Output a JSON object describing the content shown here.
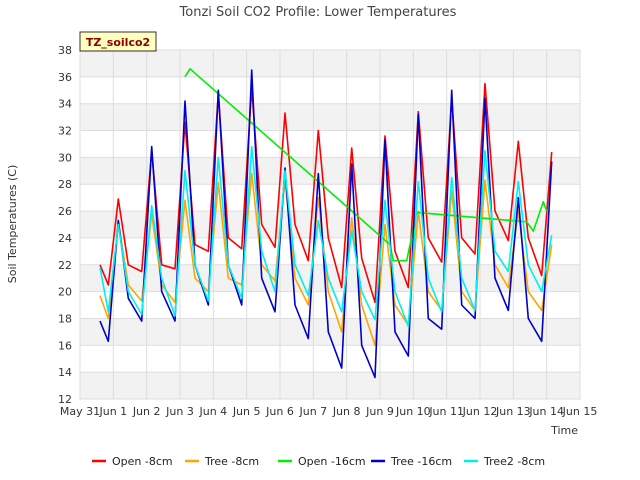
{
  "chart_data": {
    "type": "line",
    "title": "Tonzi Soil CO2 Profile: Lower Temperatures",
    "xlabel": "Time",
    "ylabel": "Soil Temperatures (C)",
    "badge": "TZ_soilco2",
    "ylim": [
      12,
      38
    ],
    "yticks": [
      12,
      14,
      16,
      18,
      20,
      22,
      24,
      26,
      28,
      30,
      32,
      34,
      36,
      38
    ],
    "xlim": [
      0,
      15
    ],
    "xticks": [
      {
        "v": 0,
        "label": "May 31"
      },
      {
        "v": 1,
        "label": "Jun 1"
      },
      {
        "v": 2,
        "label": "Jun 2"
      },
      {
        "v": 3,
        "label": "Jun 3"
      },
      {
        "v": 4,
        "label": "Jun 4"
      },
      {
        "v": 5,
        "label": "Jun 5"
      },
      {
        "v": 6,
        "label": "Jun 6"
      },
      {
        "v": 7,
        "label": "Jun 7"
      },
      {
        "v": 8,
        "label": "Jun 8"
      },
      {
        "v": 9,
        "label": "Jun 9"
      },
      {
        "v": 10,
        "label": "Jun 10"
      },
      {
        "v": 11,
        "label": "Jun 11"
      },
      {
        "v": 12,
        "label": "Jun 12"
      },
      {
        "v": 13,
        "label": "Jun 13"
      },
      {
        "v": 14,
        "label": "Jun 14"
      },
      {
        "v": 15,
        "label": "Jun 15"
      }
    ],
    "grid": true,
    "legend_position": "bottom",
    "series": [
      {
        "name": "Open -8cm",
        "color": "#ff0000",
        "x": [
          0.6,
          0.85,
          1.15,
          1.45,
          1.85,
          2.15,
          2.45,
          2.85,
          3.15,
          3.45,
          3.85,
          4.15,
          4.45,
          4.85,
          5.15,
          5.45,
          5.85,
          6.15,
          6.45,
          6.85,
          7.15,
          7.45,
          7.85,
          8.15,
          8.45,
          8.85,
          9.15,
          9.45,
          9.85,
          10.15,
          10.45,
          10.85,
          11.15,
          11.45,
          11.85,
          12.15,
          12.45,
          12.85,
          13.15,
          13.45,
          13.85,
          14.15
        ],
        "y": [
          22.0,
          20.5,
          26.9,
          22.0,
          21.5,
          30.5,
          22.0,
          21.7,
          32.6,
          23.5,
          23.0,
          34.8,
          24.0,
          23.2,
          35.2,
          25.0,
          23.3,
          33.3,
          25.0,
          22.3,
          32.0,
          24.0,
          20.3,
          30.7,
          22.5,
          19.2,
          31.6,
          23.0,
          20.3,
          33.4,
          24.0,
          22.2,
          34.4,
          24.0,
          22.8,
          35.5,
          26.0,
          23.8,
          31.2,
          24.0,
          21.2,
          30.4
        ]
      },
      {
        "name": "Tree -8cm",
        "color": "#ffa500",
        "x": [
          0.6,
          0.85,
          1.15,
          1.45,
          1.85,
          2.15,
          2.45,
          2.85,
          3.15,
          3.45,
          3.85,
          4.15,
          4.45,
          4.85,
          5.15,
          5.45,
          5.85,
          6.15,
          6.45,
          6.85,
          7.15,
          7.45,
          7.85,
          8.15,
          8.45,
          8.85,
          9.15,
          9.45,
          9.85,
          10.15,
          10.45,
          10.85,
          11.15,
          11.45,
          11.85,
          12.15,
          12.45,
          12.85,
          13.15,
          13.45,
          13.85,
          14.15
        ],
        "y": [
          19.7,
          18.0,
          25.2,
          20.5,
          19.3,
          25.8,
          20.5,
          19.2,
          26.8,
          21.0,
          20.0,
          28.1,
          21.0,
          20.5,
          28.8,
          22.0,
          20.8,
          28.3,
          21.0,
          19.0,
          27.0,
          20.0,
          17.0,
          25.5,
          19.0,
          16.0,
          25.0,
          19.0,
          17.5,
          26.0,
          20.0,
          18.6,
          27.5,
          20.0,
          18.6,
          28.3,
          22.0,
          20.3,
          26.0,
          20.0,
          18.6,
          23.5
        ]
      },
      {
        "name": "Open -16cm",
        "color": "#00ee00",
        "x": [
          3.15,
          3.3,
          9.3,
          9.4,
          9.8,
          10.1,
          13.4,
          13.6,
          13.9,
          14.0
        ],
        "y": [
          36.0,
          36.6,
          23.5,
          22.3,
          22.3,
          25.9,
          25.2,
          24.5,
          26.7,
          26.0
        ]
      },
      {
        "name": "Tree -16cm",
        "color": "#0000cc",
        "x": [
          0.6,
          0.85,
          1.15,
          1.45,
          1.85,
          2.15,
          2.45,
          2.85,
          3.15,
          3.45,
          3.85,
          4.15,
          4.45,
          4.85,
          5.15,
          5.45,
          5.85,
          6.15,
          6.45,
          6.85,
          7.15,
          7.45,
          7.85,
          8.15,
          8.45,
          8.85,
          9.15,
          9.45,
          9.85,
          10.15,
          10.45,
          10.85,
          11.15,
          11.45,
          11.85,
          12.15,
          12.45,
          12.85,
          13.15,
          13.45,
          13.85,
          14.15
        ],
        "y": [
          17.8,
          16.3,
          25.3,
          19.5,
          17.8,
          30.8,
          20.0,
          17.8,
          34.2,
          22.0,
          19.0,
          35.0,
          22.0,
          19.0,
          36.5,
          21.0,
          18.5,
          29.2,
          19.0,
          16.5,
          28.8,
          17.0,
          14.3,
          29.5,
          16.0,
          13.6,
          31.3,
          17.0,
          15.2,
          33.2,
          18.0,
          17.2,
          35.0,
          19.0,
          18.0,
          34.4,
          21.0,
          18.6,
          27.0,
          18.0,
          16.3,
          29.7
        ]
      },
      {
        "name": "Tree2 -8cm",
        "color": "#00eeee",
        "x": [
          0.6,
          0.85,
          1.15,
          1.45,
          1.85,
          2.15,
          2.45,
          2.85,
          3.15,
          3.45,
          3.85,
          4.15,
          4.45,
          4.85,
          5.15,
          5.45,
          5.85,
          6.15,
          6.45,
          6.85,
          7.15,
          7.45,
          7.85,
          8.15,
          8.45,
          8.85,
          9.15,
          9.45,
          9.85,
          10.15,
          10.45,
          10.85,
          11.15,
          11.45,
          11.85,
          12.15,
          12.45,
          12.85,
          13.15,
          13.45,
          13.85,
          14.15
        ],
        "y": [
          21.8,
          18.5,
          25.0,
          20.0,
          18.3,
          26.4,
          21.0,
          18.2,
          29.0,
          22.0,
          19.3,
          30.0,
          22.0,
          19.5,
          30.8,
          23.0,
          20.0,
          29.0,
          22.0,
          19.7,
          25.3,
          21.0,
          18.5,
          24.5,
          20.0,
          17.9,
          26.8,
          20.0,
          17.4,
          28.2,
          21.0,
          18.5,
          28.5,
          21.0,
          18.6,
          30.5,
          23.0,
          21.5,
          28.2,
          22.0,
          20.0,
          24.2
        ]
      }
    ]
  }
}
